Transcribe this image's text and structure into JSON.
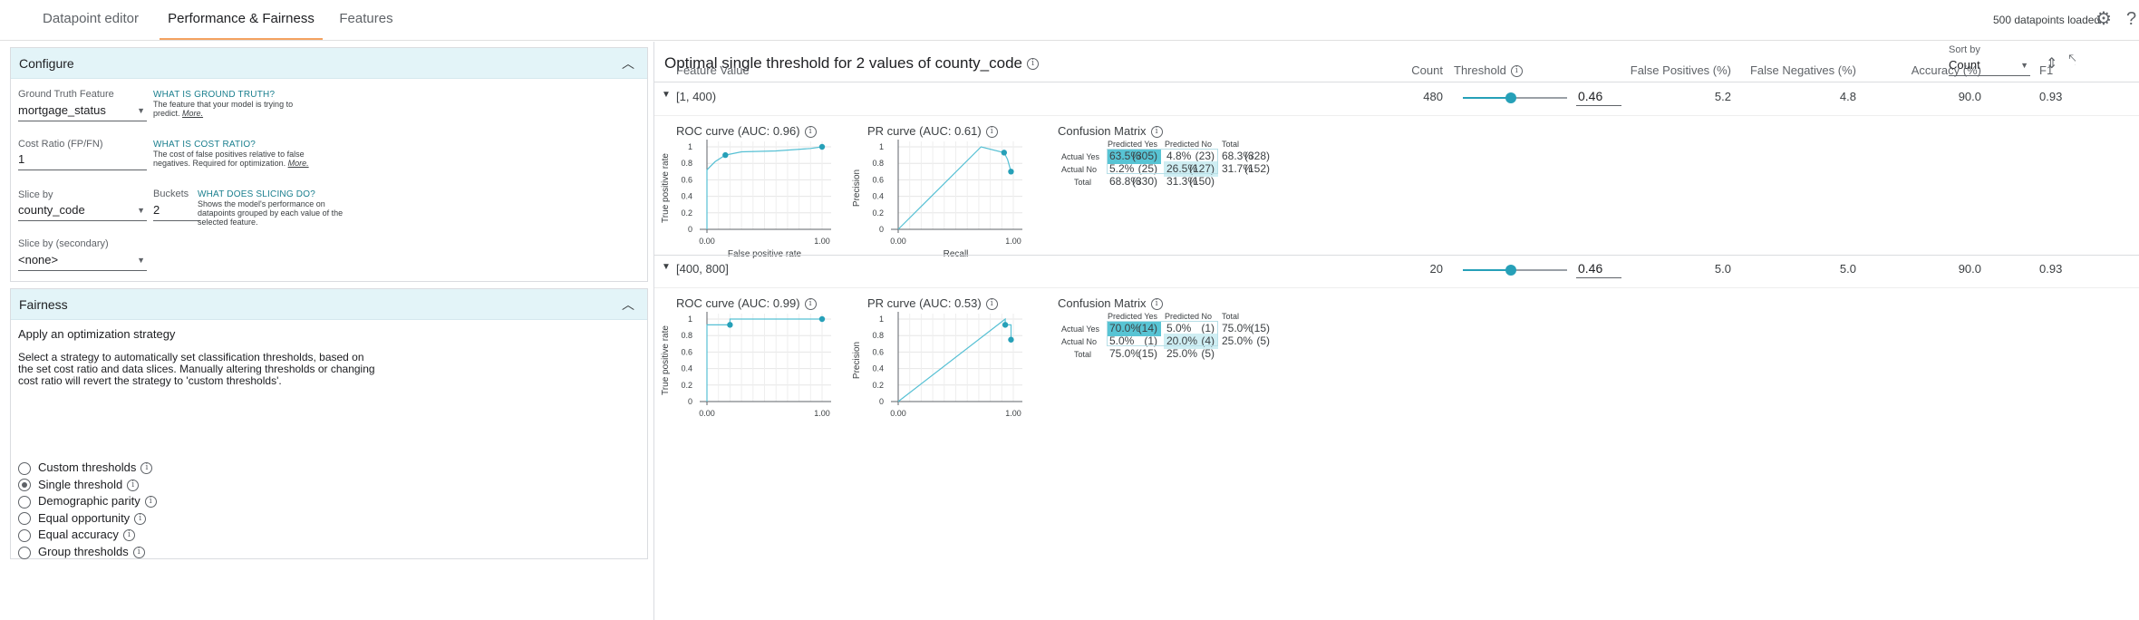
{
  "tabs": [
    {
      "label": "Datapoint editor"
    },
    {
      "label": "Performance & Fairness"
    },
    {
      "label": "Features"
    }
  ],
  "status": {
    "loaded": "500 datapoints loaded"
  },
  "configure": {
    "title": "Configure",
    "ground_truth": {
      "label": "Ground Truth Feature",
      "value": "mortgage_status",
      "help_title": "WHAT IS GROUND TRUTH?",
      "help_line1": "The feature that your model is trying to",
      "help_line2": "predict.",
      "help_more": "More."
    },
    "cost_ratio": {
      "label": "Cost Ratio (FP/FN)",
      "value": "1",
      "help_title": "WHAT IS COST RATIO?",
      "help_line1": "The cost of false positives relative to false",
      "help_line2": "negatives. Required for optimization.",
      "help_more": "More."
    },
    "slice_by": {
      "label": "Slice by",
      "value": "county_code"
    },
    "buckets": {
      "label": "Buckets",
      "value": "2"
    },
    "slicing_help": {
      "title": "WHAT DOES SLICING DO?",
      "line1": "Shows the model's performance on",
      "line2": "datapoints grouped by each value of the",
      "line3": "selected feature."
    },
    "slice_secondary": {
      "label": "Slice by (secondary)",
      "value": "<none>"
    }
  },
  "fairness": {
    "title": "Fairness",
    "heading": "Apply an optimization strategy",
    "desc_line1": "Select a strategy to automatically set classification thresholds, based on",
    "desc_line2": "the set cost ratio and data slices. Manually altering thresholds or changing",
    "desc_line3": "cost ratio will revert the strategy to 'custom thresholds'.",
    "options": [
      {
        "label": "Custom thresholds",
        "selected": false
      },
      {
        "label": "Single threshold",
        "selected": true
      },
      {
        "label": "Demographic parity",
        "selected": false
      },
      {
        "label": "Equal opportunity",
        "selected": false
      },
      {
        "label": "Equal accuracy",
        "selected": false
      },
      {
        "label": "Group thresholds",
        "selected": false
      }
    ]
  },
  "results": {
    "title": "Optimal single threshold for 2 values of county_code",
    "sort_label": "Sort by",
    "sort_value": "Count",
    "columns": {
      "feature_value": "Feature Value",
      "count": "Count",
      "threshold": "Threshold",
      "fp": "False Positives (%)",
      "fn": "False Negatives (%)",
      "accuracy": "Accuracy (%)",
      "f1": "F1"
    },
    "rows": [
      {
        "feature_value": "[1, 400)",
        "count": "480",
        "threshold": "0.46",
        "threshold_fraction": 0.46,
        "fp": "5.2",
        "fn": "4.8",
        "accuracy": "90.0",
        "f1": "0.93",
        "roc_title": "ROC curve (AUC: 0.96)",
        "pr_title": "PR curve (AUC: 0.61)",
        "roc_points": [
          [
            0,
            0
          ],
          [
            0,
            0.72
          ],
          [
            0.02,
            0.75
          ],
          [
            0.07,
            0.82
          ],
          [
            0.16,
            0.9
          ],
          [
            0.3,
            0.94
          ],
          [
            0.6,
            0.95
          ],
          [
            0.9,
            0.98
          ],
          [
            1,
            1
          ]
        ],
        "roc_marker": [
          [
            0.16,
            0.9
          ],
          [
            1,
            1
          ]
        ],
        "pr_points": [
          [
            0,
            0
          ],
          [
            0.72,
            1
          ],
          [
            0.92,
            0.93
          ],
          [
            0.95,
            0.85
          ],
          [
            0.98,
            0.7
          ]
        ],
        "pr_marker": [
          [
            0.92,
            0.93
          ],
          [
            0.98,
            0.7
          ]
        ],
        "cm": {
          "col_pred_yes": "Predicted Yes",
          "col_pred_no": "Predicted No",
          "col_total": "Total",
          "row_yes": "Actual Yes",
          "row_no": "Actual No",
          "row_total": "Total",
          "yes_yes_pct": "63.5%",
          "yes_yes_n": "(305)",
          "yes_no_pct": "4.8%",
          "yes_no_n": "(23)",
          "yes_tot_pct": "68.3%",
          "yes_tot_n": "(328)",
          "no_yes_pct": "5.2%",
          "no_yes_n": "(25)",
          "no_no_pct": "26.5%",
          "no_no_n": "(127)",
          "no_tot_pct": "31.7%",
          "no_tot_n": "(152)",
          "tot_yes_pct": "68.8%",
          "tot_yes_n": "(330)",
          "tot_no_pct": "31.3%",
          "tot_no_n": "(150)"
        }
      },
      {
        "feature_value": "[400, 800]",
        "count": "20",
        "threshold": "0.46",
        "threshold_fraction": 0.46,
        "fp": "5.0",
        "fn": "5.0",
        "accuracy": "90.0",
        "f1": "0.93",
        "roc_title": "ROC curve (AUC: 0.99)",
        "pr_title": "PR curve (AUC: 0.53)",
        "roc_points": [
          [
            0,
            0
          ],
          [
            0,
            0.93
          ],
          [
            0.2,
            0.93
          ],
          [
            0.2,
            1
          ],
          [
            1,
            1
          ]
        ],
        "roc_marker": [
          [
            0.2,
            0.93
          ],
          [
            1,
            1
          ]
        ],
        "pr_points": [
          [
            0,
            0
          ],
          [
            0.93,
            1
          ],
          [
            0.93,
            0.93
          ],
          [
            0.98,
            0.93
          ],
          [
            0.98,
            0.75
          ]
        ],
        "pr_marker": [
          [
            0.93,
            0.93
          ],
          [
            0.98,
            0.75
          ]
        ],
        "cm": {
          "col_pred_yes": "Predicted Yes",
          "col_pred_no": "Predicted No",
          "col_total": "Total",
          "row_yes": "Actual Yes",
          "row_no": "Actual No",
          "row_total": "Total",
          "yes_yes_pct": "70.0%",
          "yes_yes_n": "(14)",
          "yes_no_pct": "5.0%",
          "yes_no_n": "(1)",
          "yes_tot_pct": "75.0%",
          "yes_tot_n": "(15)",
          "no_yes_pct": "5.0%",
          "no_yes_n": "(1)",
          "no_no_pct": "20.0%",
          "no_no_n": "(4)",
          "no_tot_pct": "25.0%",
          "no_tot_n": "(5)",
          "tot_yes_pct": "75.0%",
          "tot_yes_n": "(15)",
          "tot_no_pct": "25.0%",
          "tot_no_n": "(5)"
        }
      }
    ],
    "roc_axes": {
      "ylabel": "True positive rate",
      "xlabel": "False positive rate",
      "yticks": [
        "1",
        "0.8",
        "0.6",
        "0.4",
        "0.2",
        "0"
      ],
      "xticks": [
        "0.00",
        "1.00"
      ]
    },
    "pr_axes": {
      "ylabel": "Precision",
      "xlabel": "Recall",
      "yticks": [
        "1",
        "0.8",
        "0.6",
        "0.4",
        "0.2",
        "0"
      ],
      "xticks": [
        "0.00",
        "1.00"
      ]
    }
  },
  "colors": {
    "accent": "#26a0b8",
    "cm_dark": "#58c4d4",
    "cm_light": "#cfeef3",
    "panel_header": "#e3f4f8"
  }
}
